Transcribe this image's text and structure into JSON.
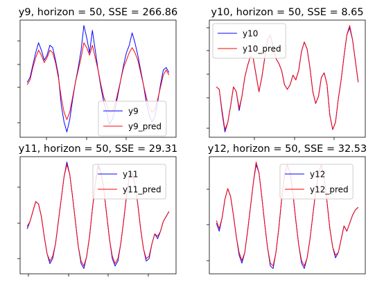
{
  "chart_data": [
    {
      "type": "line",
      "title": "y9, horizon = 50, SSE = 266.86",
      "xlabel": "",
      "ylabel": "",
      "grid": false,
      "legend_position": "lower-right",
      "x": [
        0,
        4,
        8,
        12,
        16,
        20,
        24,
        28,
        32,
        36,
        40,
        44,
        48,
        52,
        56,
        60,
        64,
        68,
        72,
        76,
        80,
        84,
        88,
        92,
        96,
        100,
        104,
        108,
        112,
        116,
        120,
        124,
        128,
        132,
        136,
        140,
        144,
        148,
        152,
        156,
        160,
        164,
        168,
        172,
        176,
        180,
        184,
        188,
        192,
        196,
        200
      ],
      "series": [
        {
          "name": "y9",
          "color": "#0000ff",
          "values": [
            0.3,
            0.5,
            1.0,
            1.5,
            1.9,
            1.6,
            1.2,
            1.4,
            1.8,
            1.7,
            1.2,
            0.6,
            -0.6,
            -1.3,
            -1.7,
            -1.2,
            -0.4,
            0.3,
            0.9,
            1.6,
            2.6,
            2.1,
            1.5,
            2.4,
            1.6,
            0.8,
            0.1,
            -0.5,
            -0.9,
            -1.4,
            -1.2,
            -0.8,
            -0.2,
            0.4,
            1.0,
            1.5,
            1.8,
            2.3,
            1.9,
            1.4,
            0.8,
            0.2,
            -0.5,
            -1.0,
            -1.3,
            -1.1,
            -0.5,
            0.2,
            0.8,
            0.9,
            0.7
          ]
        },
        {
          "name": "y9_pred",
          "color": "#ff0000",
          "values": [
            0.2,
            0.4,
            0.9,
            1.3,
            1.6,
            1.4,
            1.1,
            1.3,
            1.6,
            1.5,
            1.1,
            0.5,
            -0.3,
            -0.9,
            -1.2,
            -0.9,
            -0.3,
            0.3,
            0.8,
            1.3,
            1.9,
            1.7,
            1.4,
            1.8,
            1.3,
            0.8,
            0.2,
            -0.3,
            -0.6,
            -0.9,
            -0.9,
            -0.6,
            -0.1,
            0.4,
            0.9,
            1.2,
            1.5,
            1.7,
            1.5,
            1.2,
            0.7,
            0.2,
            -0.3,
            -0.7,
            -0.9,
            -0.8,
            -0.4,
            0.1,
            0.6,
            0.8,
            0.6
          ]
        }
      ]
    },
    {
      "type": "line",
      "title": "y10, horizon = 50, SSE = 8.65",
      "xlabel": "",
      "ylabel": "",
      "grid": false,
      "legend_position": "upper-left",
      "x": [
        0,
        4,
        8,
        12,
        16,
        20,
        24,
        28,
        32,
        36,
        40,
        44,
        48,
        52,
        56,
        60,
        64,
        68,
        72,
        76,
        80,
        84,
        88,
        92,
        96,
        100,
        104,
        108,
        112,
        116,
        120,
        124,
        128,
        132,
        136,
        140,
        144,
        148,
        152,
        156,
        160,
        164,
        168,
        172,
        176,
        180,
        184,
        188,
        192,
        196,
        200
      ],
      "series": [
        {
          "name": "y10",
          "color": "#0000ff",
          "values": [
            0.2,
            0.1,
            -0.9,
            -1.7,
            -1.3,
            -0.6,
            0.2,
            0.0,
            -0.8,
            -0.2,
            0.6,
            1.1,
            1.5,
            1.4,
            0.7,
            0.0,
            0.6,
            1.4,
            2.2,
            2.4,
            1.9,
            1.4,
            1.2,
            0.9,
            0.3,
            0.1,
            0.3,
            0.7,
            0.5,
            0.9,
            1.7,
            2.1,
            1.8,
            1.0,
            0.0,
            -0.5,
            -0.2,
            0.6,
            0.8,
            0.3,
            -1.0,
            -1.6,
            -1.3,
            -0.3,
            0.5,
            1.5,
            2.4,
            2.7,
            2.2,
            1.3,
            0.4
          ]
        },
        {
          "name": "y10_pred",
          "color": "#ff0000",
          "values": [
            0.2,
            0.1,
            -0.8,
            -1.6,
            -1.3,
            -0.6,
            0.2,
            0.0,
            -0.7,
            -0.2,
            0.6,
            1.1,
            1.5,
            1.4,
            0.7,
            0.0,
            0.6,
            1.4,
            2.2,
            2.4,
            1.9,
            1.4,
            1.2,
            0.9,
            0.3,
            0.1,
            0.3,
            0.7,
            0.5,
            0.9,
            1.7,
            2.1,
            1.8,
            1.0,
            0.0,
            -0.5,
            -0.2,
            0.6,
            0.8,
            0.3,
            -1.0,
            -1.6,
            -1.3,
            -0.3,
            0.5,
            1.5,
            2.4,
            2.8,
            2.2,
            1.3,
            0.4
          ]
        }
      ]
    },
    {
      "type": "line",
      "title": "y11, horizon = 50, SSE = 29.31",
      "xlabel": "",
      "ylabel": "",
      "grid": false,
      "legend_position": "upper-right",
      "x": [
        0,
        4,
        8,
        12,
        16,
        20,
        24,
        28,
        32,
        36,
        40,
        44,
        48,
        52,
        56,
        60,
        64,
        68,
        72,
        76,
        80,
        84,
        88,
        92,
        96,
        100,
        104,
        108,
        112,
        116,
        120,
        124,
        128,
        132,
        136,
        140,
        144,
        148,
        152,
        156,
        160,
        164,
        168,
        172,
        176,
        180,
        184,
        188,
        192,
        196,
        200
      ],
      "series": [
        {
          "name": "y11",
          "color": "#0000ff",
          "values": [
            0.0,
            0.3,
            0.7,
            1.1,
            1.0,
            0.5,
            -0.3,
            -1.0,
            -1.4,
            -1.2,
            -0.6,
            0.3,
            1.2,
            2.1,
            2.7,
            2.2,
            1.3,
            0.3,
            -0.7,
            -1.4,
            -1.6,
            -1.1,
            -0.3,
            0.8,
            1.8,
            2.6,
            2.3,
            1.6,
            0.6,
            -0.4,
            -1.2,
            -1.5,
            -1.3,
            -0.6,
            0.3,
            1.3,
            2.1,
            2.3,
            1.8,
            1.0,
            0.0,
            -0.8,
            -1.3,
            -1.2,
            -0.6,
            -0.2,
            -0.4,
            -0.1,
            0.3,
            0.5,
            0.7
          ]
        },
        {
          "name": "y11_pred",
          "color": "#ff0000",
          "values": [
            0.1,
            0.3,
            0.7,
            1.1,
            1.0,
            0.5,
            -0.3,
            -1.0,
            -1.3,
            -1.1,
            -0.6,
            0.3,
            1.2,
            2.1,
            2.6,
            2.2,
            1.3,
            0.3,
            -0.7,
            -1.3,
            -1.5,
            -1.1,
            -0.3,
            0.8,
            1.8,
            2.5,
            2.3,
            1.6,
            0.6,
            -0.4,
            -1.1,
            -1.4,
            -1.2,
            -0.6,
            0.3,
            1.3,
            2.1,
            2.2,
            1.8,
            1.0,
            0.0,
            -0.8,
            -1.2,
            -1.1,
            -0.6,
            -0.2,
            -0.3,
            -0.1,
            0.3,
            0.5,
            0.7
          ]
        }
      ]
    },
    {
      "type": "line",
      "title": "y12, horizon = 50, SSE = 32.53",
      "xlabel": "",
      "ylabel": "",
      "grid": false,
      "legend_position": "upper-right",
      "x": [
        0,
        4,
        8,
        12,
        16,
        20,
        24,
        28,
        32,
        36,
        40,
        44,
        48,
        52,
        56,
        60,
        64,
        68,
        72,
        76,
        80,
        84,
        88,
        92,
        96,
        100,
        104,
        108,
        112,
        116,
        120,
        124,
        128,
        132,
        136,
        140,
        144,
        148,
        152,
        156,
        160,
        164,
        168,
        172,
        176,
        180,
        184,
        188,
        192,
        196,
        200
      ],
      "series": [
        {
          "name": "y12",
          "color": "#0000ff",
          "values": [
            0.1,
            -0.2,
            0.3,
            1.0,
            1.4,
            1.1,
            0.4,
            -0.4,
            -1.1,
            -1.4,
            -1.0,
            -0.2,
            0.7,
            1.6,
            2.3,
            2.0,
            1.1,
            0.1,
            -0.8,
            -1.5,
            -1.6,
            -1.0,
            -0.1,
            1.0,
            1.9,
            2.3,
            2.0,
            1.2,
            0.2,
            -0.7,
            -1.4,
            -1.6,
            -1.2,
            -0.5,
            0.4,
            1.3,
            2.0,
            2.3,
            1.8,
            0.9,
            -0.1,
            -0.8,
            -1.2,
            -1.0,
            -0.5,
            0.0,
            -0.2,
            0.1,
            0.4,
            0.6,
            0.7
          ]
        },
        {
          "name": "y12_pred",
          "color": "#ff0000",
          "values": [
            0.2,
            -0.1,
            0.3,
            1.0,
            1.4,
            1.1,
            0.4,
            -0.4,
            -1.0,
            -1.3,
            -1.0,
            -0.2,
            0.7,
            1.6,
            2.4,
            2.0,
            1.1,
            0.1,
            -0.8,
            -1.4,
            -1.5,
            -1.0,
            -0.1,
            1.0,
            1.9,
            2.3,
            2.0,
            1.2,
            0.2,
            -0.7,
            -1.3,
            -1.5,
            -1.2,
            -0.5,
            0.4,
            1.3,
            2.0,
            2.3,
            1.8,
            0.9,
            -0.1,
            -0.8,
            -1.1,
            -1.0,
            -0.5,
            0.0,
            -0.2,
            0.1,
            0.4,
            0.6,
            0.7
          ]
        }
      ]
    }
  ]
}
